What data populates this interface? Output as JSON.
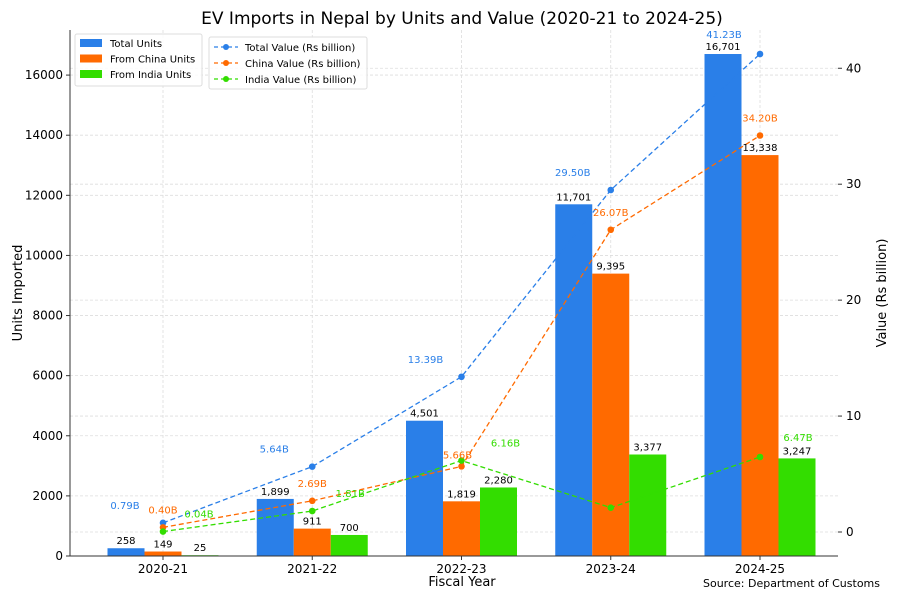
{
  "chart_data": {
    "type": "bar",
    "title": "EV Imports in Nepal by Units and Value (2020-21 to 2024-25)",
    "xlabel": "Fiscal Year",
    "ylabel": "Units Imported",
    "y2label": "Value (Rs billion)",
    "source": "Source: Department of Customs",
    "categories": [
      "2020-21",
      "2021-22",
      "2022-23",
      "2023-24",
      "2024-25"
    ],
    "ylim": [
      0,
      17500
    ],
    "y2lim": [
      -2.07,
      43.3
    ],
    "yticks": [
      0,
      2000,
      4000,
      6000,
      8000,
      10000,
      12000,
      14000,
      16000
    ],
    "y2ticks": [
      0,
      10,
      20,
      30,
      40
    ],
    "grid": true,
    "bar_series": [
      {
        "name": "Total Units",
        "color": "#2a7fe8",
        "values": [
          258,
          1899,
          4501,
          11701,
          16701
        ],
        "labels": [
          "258",
          "1,899",
          "4,501",
          "11,701",
          "16,701"
        ]
      },
      {
        "name": "From China Units",
        "color": "#ff6a00",
        "values": [
          149,
          911,
          1819,
          9395,
          13338
        ],
        "labels": [
          "149",
          "911",
          "1,819",
          "9,395",
          "13,338"
        ]
      },
      {
        "name": "From India Units",
        "color": "#33dd00",
        "values": [
          25,
          700,
          2280,
          3377,
          3247
        ],
        "labels": [
          "25",
          "700",
          "2,280",
          "3,377",
          "3,247"
        ]
      }
    ],
    "line_series": [
      {
        "name": "Total Value (Rs billion)",
        "color": "#2a7fe8",
        "values": [
          0.79,
          5.64,
          13.39,
          29.5,
          41.23
        ],
        "labels": [
          "0.79B",
          "5.64B",
          "13.39B",
          "29.50B",
          "41.23B"
        ]
      },
      {
        "name": "China Value (Rs billion)",
        "color": "#ff6a00",
        "values": [
          0.4,
          2.69,
          5.66,
          26.07,
          34.2
        ],
        "labels": [
          "0.40B",
          "2.69B",
          "5.66B",
          "26.07B",
          "34.20B"
        ]
      },
      {
        "name": "India Value (Rs billion)",
        "color": "#33dd00",
        "values": [
          0.04,
          1.81,
          6.16,
          2.1,
          6.47
        ],
        "labels": [
          "0.04B",
          "1.81B",
          "6.16B",
          "",
          "6.47B"
        ]
      }
    ],
    "legend_bars_position": "top-left",
    "legend_lines_position": "top-left"
  }
}
